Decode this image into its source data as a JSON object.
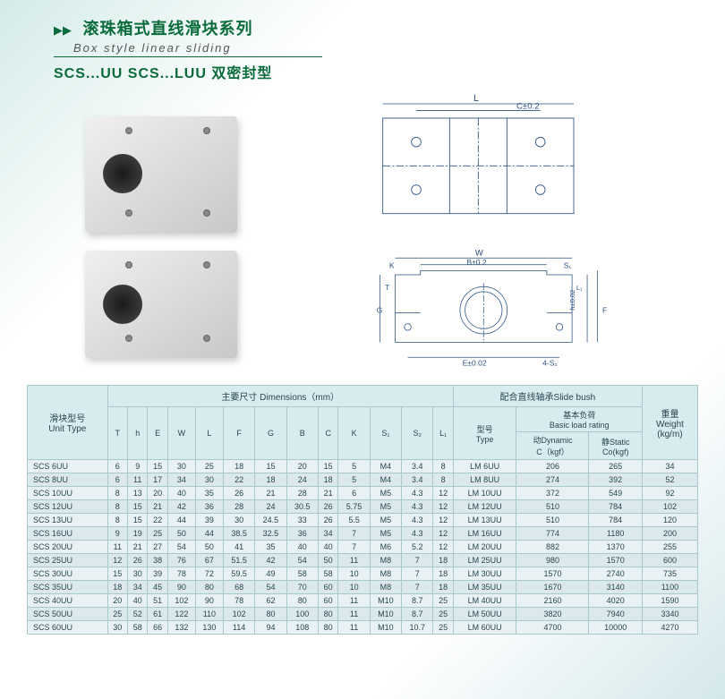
{
  "header": {
    "title_cn": "滚珠箱式直线滑块系列",
    "title_en": "Box style linear sliding",
    "subtitle": "SCS...UU  SCS...LUU 双密封型"
  },
  "diagram_labels": {
    "top_L": "L",
    "top_C": "C±0.2",
    "front_W": "W",
    "front_B": "B±0.2",
    "front_S1": "S₁",
    "front_K": "K",
    "front_T": "T",
    "front_G": "G",
    "front_h": "h±0.02",
    "front_F": "F",
    "front_L1": "L₁",
    "front_E": "E±0.02",
    "front_4S2": "4-S₂"
  },
  "table": {
    "group_headers": {
      "dimensions": "主要尺寸 Dimensions（mm）",
      "slide_bush": "配合直线轴承Slide bush",
      "weight": "重量\nWeight\n(kg/m)"
    },
    "sub_headers": {
      "unit_type": "滑块型号\nUnit Type",
      "type": "型号\nType",
      "basic_load": "基本负荷\nBasic load rating",
      "dynamic": "动Dynamic\nC（kgf）",
      "static": "静Static\nCo(kgf)"
    },
    "dim_cols": [
      "T",
      "h",
      "E",
      "W",
      "L",
      "F",
      "G",
      "B",
      "C",
      "K",
      "S₁",
      "S₂",
      "L₁"
    ],
    "rows": [
      {
        "unit": "SCS 6UU",
        "d": [
          "6",
          "9",
          "15",
          "30",
          "25",
          "18",
          "15",
          "20",
          "15",
          "5",
          "M4",
          "3.4",
          "8"
        ],
        "type": "LM 6UU",
        "dyn": "206",
        "stat": "265",
        "wt": "34"
      },
      {
        "unit": "SCS 8UU",
        "d": [
          "6",
          "11",
          "17",
          "34",
          "30",
          "22",
          "18",
          "24",
          "18",
          "5",
          "M4",
          "3.4",
          "8"
        ],
        "type": "LM 8UU",
        "dyn": "274",
        "stat": "392",
        "wt": "52"
      },
      {
        "unit": "SCS 10UU",
        "d": [
          "8",
          "13",
          "20",
          "40",
          "35",
          "26",
          "21",
          "28",
          "21",
          "6",
          "M5",
          "4.3",
          "12"
        ],
        "type": "LM 10UU",
        "dyn": "372",
        "stat": "549",
        "wt": "92"
      },
      {
        "unit": "SCS 12UU",
        "d": [
          "8",
          "15",
          "21",
          "42",
          "36",
          "28",
          "24",
          "30.5",
          "26",
          "5.75",
          "M5",
          "4.3",
          "12"
        ],
        "type": "LM 12UU",
        "dyn": "510",
        "stat": "784",
        "wt": "102"
      },
      {
        "unit": "SCS 13UU",
        "d": [
          "8",
          "15",
          "22",
          "44",
          "39",
          "30",
          "24.5",
          "33",
          "26",
          "5.5",
          "M5",
          "4.3",
          "12"
        ],
        "type": "LM 13UU",
        "dyn": "510",
        "stat": "784",
        "wt": "120"
      },
      {
        "unit": "SCS 16UU",
        "d": [
          "9",
          "19",
          "25",
          "50",
          "44",
          "38.5",
          "32.5",
          "36",
          "34",
          "7",
          "M5",
          "4.3",
          "12"
        ],
        "type": "LM 16UU",
        "dyn": "774",
        "stat": "1180",
        "wt": "200"
      },
      {
        "unit": "SCS 20UU",
        "d": [
          "11",
          "21",
          "27",
          "54",
          "50",
          "41",
          "35",
          "40",
          "40",
          "7",
          "M6",
          "5.2",
          "12"
        ],
        "type": "LM 20UU",
        "dyn": "882",
        "stat": "1370",
        "wt": "255"
      },
      {
        "unit": "SCS 25UU",
        "d": [
          "12",
          "26",
          "38",
          "76",
          "67",
          "51.5",
          "42",
          "54",
          "50",
          "11",
          "M8",
          "7",
          "18"
        ],
        "type": "LM 25UU",
        "dyn": "980",
        "stat": "1570",
        "wt": "600"
      },
      {
        "unit": "SCS 30UU",
        "d": [
          "15",
          "30",
          "39",
          "78",
          "72",
          "59.5",
          "49",
          "58",
          "58",
          "10",
          "M8",
          "7",
          "18"
        ],
        "type": "LM 30UU",
        "dyn": "1570",
        "stat": "2740",
        "wt": "735"
      },
      {
        "unit": "SCS 35UU",
        "d": [
          "18",
          "34",
          "45",
          "90",
          "80",
          "68",
          "54",
          "70",
          "60",
          "10",
          "M8",
          "7",
          "18"
        ],
        "type": "LM 35UU",
        "dyn": "1670",
        "stat": "3140",
        "wt": "1100"
      },
      {
        "unit": "SCS 40UU",
        "d": [
          "20",
          "40",
          "51",
          "102",
          "90",
          "78",
          "62",
          "80",
          "60",
          "11",
          "M10",
          "8.7",
          "25"
        ],
        "type": "LM 40UU",
        "dyn": "2160",
        "stat": "4020",
        "wt": "1590"
      },
      {
        "unit": "SCS 50UU",
        "d": [
          "25",
          "52",
          "61",
          "122",
          "110",
          "102",
          "80",
          "100",
          "80",
          "11",
          "M10",
          "8.7",
          "25"
        ],
        "type": "LM 50UU",
        "dyn": "3820",
        "stat": "7940",
        "wt": "3340"
      },
      {
        "unit": "SCS 60UU",
        "d": [
          "30",
          "58",
          "66",
          "132",
          "130",
          "114",
          "94",
          "108",
          "80",
          "11",
          "M10",
          "10.7",
          "25"
        ],
        "type": "LM 60UU",
        "dyn": "4700",
        "stat": "10000",
        "wt": "4270"
      }
    ]
  }
}
